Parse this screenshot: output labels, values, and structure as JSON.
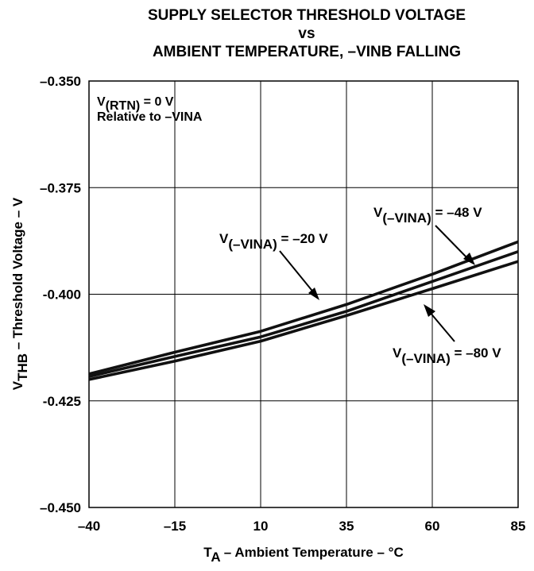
{
  "chart_data": {
    "type": "line",
    "title_lines": [
      "SUPPLY SELECTOR THRESHOLD VOLTAGE",
      "vs",
      "AMBIENT TEMPERATURE, –VINB FALLING"
    ],
    "xlabel": {
      "main": "T",
      "sub": "A",
      "rest": " – Ambient Temperature – °C"
    },
    "ylabel": {
      "main": "V",
      "sub": "THB",
      "rest": " – Threshold Voltage – V"
    },
    "xlim": [
      -40,
      85
    ],
    "ylim": [
      -0.45,
      -0.35
    ],
    "xticks": [
      -40,
      -15,
      10,
      35,
      60,
      85
    ],
    "xtick_labels": [
      "–40",
      "–15",
      "10",
      "35",
      "60",
      "85"
    ],
    "yticks": [
      -0.35,
      -0.375,
      -0.4,
      -0.425,
      -0.45
    ],
    "ytick_labels": [
      "–0.350",
      "–0.375",
      "-0.400",
      "-0.425",
      "–0.450"
    ],
    "grid": true,
    "condition": {
      "line1_main": "V",
      "line1_sub": "(RTN)",
      "line1_rest": " = 0 V",
      "line2": "Relative to –VINA"
    },
    "series": [
      {
        "name_main": "V",
        "name_sub": "(–VINA)",
        "name_rest": " = –20 V",
        "x": [
          -40,
          -15,
          10,
          35,
          60,
          85
        ],
        "y": [
          -0.4187,
          -0.4136,
          -0.4087,
          -0.4024,
          -0.3953,
          -0.3877
        ]
      },
      {
        "name_main": "V",
        "name_sub": "(–VINA)",
        "name_rest": " = –48 V",
        "x": [
          -40,
          -15,
          10,
          35,
          60,
          85
        ],
        "y": [
          -0.4193,
          -0.4146,
          -0.41,
          -0.404,
          -0.397,
          -0.39
        ]
      },
      {
        "name_main": "V",
        "name_sub": "(–VINA)",
        "name_rest": " = –80 V",
        "x": [
          -40,
          -15,
          10,
          35,
          60,
          85
        ],
        "y": [
          -0.42,
          -0.4157,
          -0.411,
          -0.405,
          -0.3987,
          -0.3923
        ]
      }
    ],
    "line_color": "#111111"
  }
}
